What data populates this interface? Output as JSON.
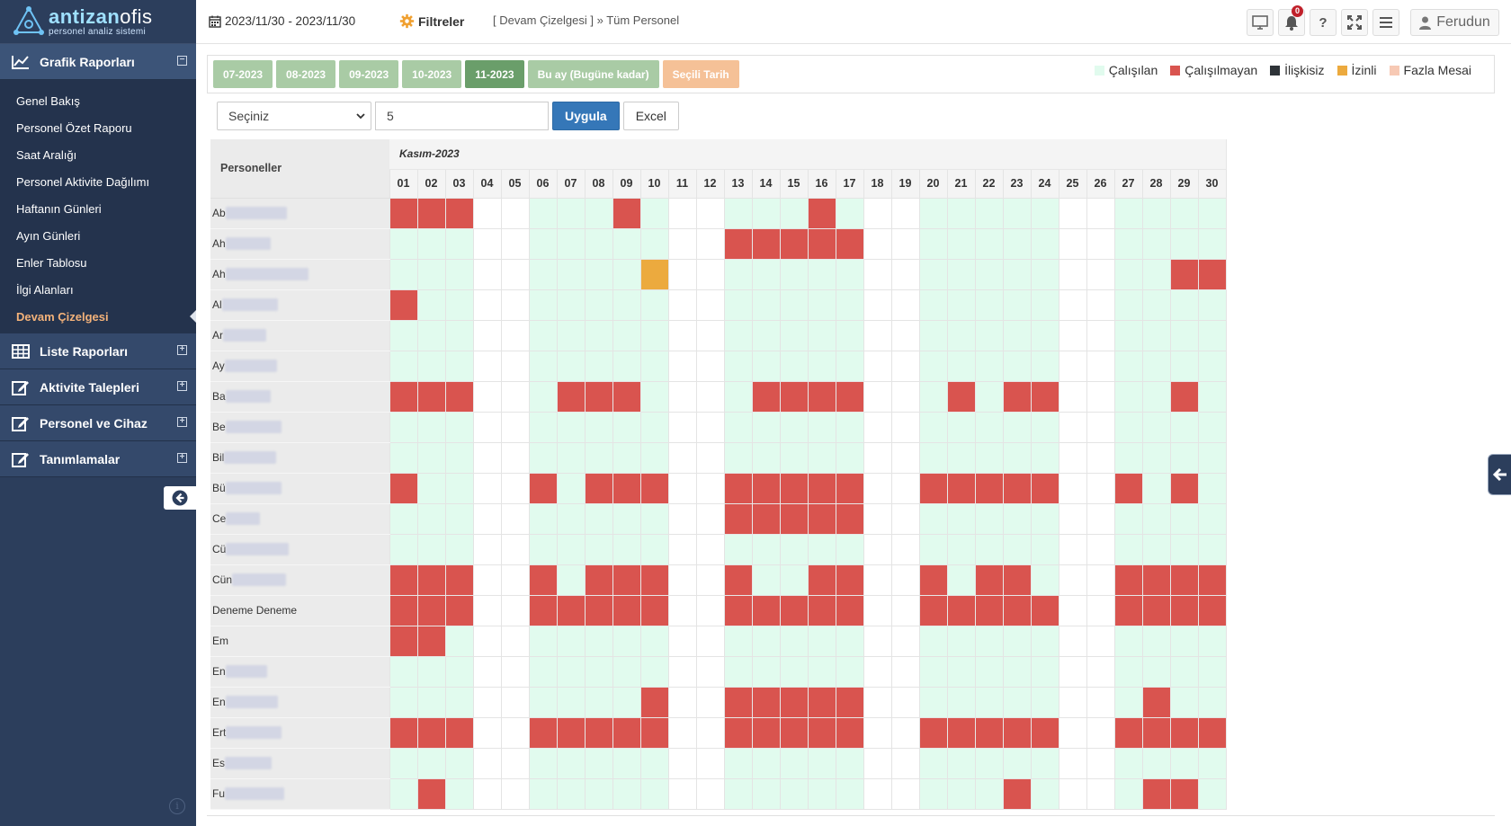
{
  "logo": {
    "part1": "antizan",
    "part2": "ofis",
    "sub": "personel analiz sistemi"
  },
  "sidebar": {
    "sections": [
      {
        "label": "Grafik Raporları",
        "icon": "chart-icon",
        "toggle": "⊟",
        "expanded": true,
        "items": [
          {
            "label": "Genel Bakış"
          },
          {
            "label": "Personel Özet Raporu"
          },
          {
            "label": "Saat Aralığı"
          },
          {
            "label": "Personel Aktivite Dağılımı"
          },
          {
            "label": "Haftanın Günleri"
          },
          {
            "label": "Ayın Günleri"
          },
          {
            "label": "Enler Tablosu"
          },
          {
            "label": "İlgi Alanları"
          },
          {
            "label": "Devam Çizelgesi",
            "current": true
          }
        ]
      },
      {
        "label": "Liste Raporları",
        "icon": "table-icon",
        "toggle": "⊞"
      },
      {
        "label": "Aktivite Talepleri",
        "icon": "edit-icon",
        "toggle": "⊞"
      },
      {
        "label": "Personel ve Cihaz",
        "icon": "edit-icon",
        "toggle": "⊞"
      },
      {
        "label": "Tanımlamalar",
        "icon": "edit-icon",
        "toggle": "⊞"
      }
    ]
  },
  "topbar": {
    "daterange": "2023/11/30 - 2023/11/30",
    "filters_label": "Filtreler",
    "breadcrumb": "[ Devam Çizelgesi ] » Tüm Personel",
    "notification_count": "0",
    "user_name": "Ferudun"
  },
  "tabs": [
    {
      "label": "07-2023",
      "state": "normal"
    },
    {
      "label": "08-2023",
      "state": "normal"
    },
    {
      "label": "09-2023",
      "state": "normal"
    },
    {
      "label": "10-2023",
      "state": "normal"
    },
    {
      "label": "11-2023",
      "state": "active"
    },
    {
      "label": "Bu ay (Bugüne kadar)",
      "state": "normal"
    },
    {
      "label": "Seçili Tarih",
      "state": "custom"
    }
  ],
  "legend": [
    {
      "label": "Çalışılan",
      "color": "#e1fbee"
    },
    {
      "label": "Çalışılmayan",
      "color": "#d9544f"
    },
    {
      "label": "İlişkisiz",
      "color": "#2e3338"
    },
    {
      "label": "İzinli",
      "color": "#ecaa3e"
    },
    {
      "label": "Fazla Mesai",
      "color": "#f7c9b4"
    }
  ],
  "controls": {
    "select_value": "Seçiniz",
    "input_value": "5",
    "apply_label": "Uygula",
    "excel_label": "Excel"
  },
  "grid": {
    "header_label": "Personeller",
    "month_label": "Kasım-2023",
    "days": [
      "01",
      "02",
      "03",
      "04",
      "05",
      "06",
      "07",
      "08",
      "09",
      "10",
      "11",
      "12",
      "13",
      "14",
      "15",
      "16",
      "17",
      "18",
      "19",
      "20",
      "21",
      "22",
      "23",
      "24",
      "25",
      "26",
      "27",
      "28",
      "29",
      "30"
    ],
    "rows": [
      {
        "name": "Ab",
        "blur": 68,
        "status": "UUUNNWWWUWNNWWWUWNNWWWWWNNWWWW"
      },
      {
        "name": "Ah",
        "blur": 50,
        "status": "WWWNNWWWWWNNUUUUUNNWWWWWNNWWWW"
      },
      {
        "name": "Ah",
        "blur": 92,
        "status": "WWWNNWWWWLNNWWWWWNNWWWWWNNWWUU"
      },
      {
        "name": "Al",
        "blur": 62,
        "status": "UWWNNWWWWWNNWWWWWNNWWWWWNNWWWW"
      },
      {
        "name": "Ar",
        "blur": 48,
        "status": "WWWNNWWWWWNNWWWWWNNWWWWWNNWWWW"
      },
      {
        "name": "Ay",
        "blur": 58,
        "status": "WWWNNWWWWWNNWWWWWNNWWWWWNNWWWW"
      },
      {
        "name": "Ba",
        "blur": 50,
        "status": "UUUNNWUUUWNNWUUUUNNWUWUUNNWWUW"
      },
      {
        "name": "Be",
        "blur": 62,
        "status": "WWWNNWWWWWNNWWWWWNNWWWWWNNWWWW"
      },
      {
        "name": "Bil",
        "blur": 58,
        "status": "WWWNNWWWWWNNWWWWWNNWWWWWNNWWWW"
      },
      {
        "name": "Bü",
        "blur": 62,
        "status": "UWWNNUWUUUNNUUUUUNNUUUUUNNUWUW"
      },
      {
        "name": "Ce",
        "blur": 38,
        "status": "WWWNNWWWWWNNUUUUUNNWWWWWNNWWWW"
      },
      {
        "name": "Cü",
        "blur": 70,
        "status": "WWWNNWWWWWNNWWWWWNNWWWWWNNWWWW"
      },
      {
        "name": "Cün",
        "blur": 60,
        "status": "UUUNNUWUUUNNUWWUUNNUWUUWNNUUUU"
      },
      {
        "name": "Deneme Deneme",
        "blur": 0,
        "status": "UUUNNUUUUUNNUUUUUNNUUUUUNNUUUU"
      },
      {
        "name": "Em",
        "blur": 0,
        "status": "UUWNNWWWWWNNWWWWWNNWWWWWNNWWWW"
      },
      {
        "name": "En",
        "blur": 46,
        "status": "WWWNNWWWWWNNWWWWWNNWWWWWNNWWWW"
      },
      {
        "name": "En",
        "blur": 58,
        "status": "WWWNNWWWWUNNUUUUUNNWWWWWNNWUWW"
      },
      {
        "name": "Ert",
        "blur": 62,
        "status": "UUUNNUUUUUNNUUUUUNNUUUUUNNUUUU"
      },
      {
        "name": "Es",
        "blur": 52,
        "status": "WWWNNWWWWWNNWWWWWNNWWWWWNNWWWW"
      },
      {
        "name": "Fu",
        "blur": 66,
        "status": "WUWNNWWWWWNNWWWWWNNWWWUWNNWUUW"
      }
    ]
  }
}
